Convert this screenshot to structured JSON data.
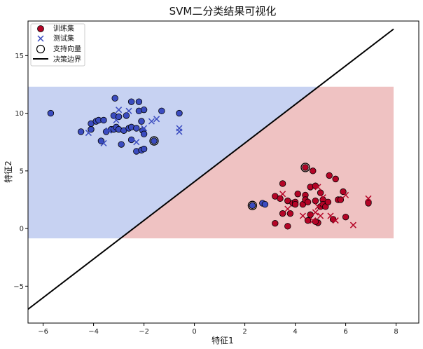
{
  "chart_data": {
    "type": "scatter",
    "title": "SVM二分类结果可视化",
    "xlabel": "特征1",
    "ylabel": "特征2",
    "xlim": [
      -6.6,
      8.9
    ],
    "ylim": [
      -8.2,
      18.0
    ],
    "xticks": [
      -6,
      -4,
      -2,
      0,
      2,
      4,
      6,
      8
    ],
    "yticks": [
      -5,
      0,
      5,
      10,
      15
    ],
    "grid": false,
    "legend_position": "top-left",
    "legend": [
      "训练集",
      "测试集",
      "支持向量",
      "决策边界"
    ],
    "colors": {
      "blue_class": "#3b4cc0",
      "red_class": "#b40426",
      "region_blue": "#c7d2f2",
      "region_red": "#efc2c2",
      "boundary": "#000000"
    },
    "region": {
      "x": [
        -6.6,
        7.9
      ],
      "y": [
        -0.85,
        12.3
      ]
    },
    "decision_boundary": {
      "x": [
        -6.6,
        7.9
      ],
      "y": [
        -7.0,
        17.3
      ]
    },
    "train_blue": [
      [
        -5.7,
        10.0
      ],
      [
        -4.5,
        8.4
      ],
      [
        -4.1,
        8.6
      ],
      [
        -4.1,
        9.1
      ],
      [
        -3.9,
        9.3
      ],
      [
        -3.8,
        9.4
      ],
      [
        -3.7,
        7.6
      ],
      [
        -3.6,
        9.4
      ],
      [
        -3.5,
        8.4
      ],
      [
        -3.3,
        8.6
      ],
      [
        -3.2,
        9.8
      ],
      [
        -3.2,
        8.6
      ],
      [
        -3.15,
        11.3
      ],
      [
        -3.1,
        8.8
      ],
      [
        -3.0,
        9.7
      ],
      [
        -3.0,
        8.6
      ],
      [
        -2.9,
        7.3
      ],
      [
        -2.8,
        8.5
      ],
      [
        -2.7,
        9.8
      ],
      [
        -2.6,
        8.7
      ],
      [
        -2.5,
        11.0
      ],
      [
        -2.5,
        8.8
      ],
      [
        -2.5,
        7.7
      ],
      [
        -2.3,
        8.7
      ],
      [
        -2.2,
        10.2
      ],
      [
        -2.3,
        6.7
      ],
      [
        -2.2,
        11.0
      ],
      [
        -2.1,
        9.3
      ],
      [
        -2.1,
        6.8
      ],
      [
        -2.0,
        6.9
      ],
      [
        -2.05,
        8.5
      ],
      [
        -2.0,
        8.2
      ],
      [
        -2.0,
        10.3
      ],
      [
        -1.6,
        7.6
      ],
      [
        -1.3,
        10.2
      ],
      [
        -0.6,
        10.0
      ],
      [
        2.3,
        2.0
      ],
      [
        2.3,
        2.0
      ],
      [
        2.7,
        2.2
      ],
      [
        2.8,
        2.1
      ]
    ],
    "train_red": [
      [
        3.2,
        2.8
      ],
      [
        3.2,
        0.45
      ],
      [
        3.4,
        2.6
      ],
      [
        3.5,
        1.3
      ],
      [
        3.5,
        3.9
      ],
      [
        3.7,
        2.4
      ],
      [
        3.7,
        0.2
      ],
      [
        3.8,
        1.3
      ],
      [
        3.9,
        2.2
      ],
      [
        4.0,
        2.3
      ],
      [
        4.1,
        3.0
      ],
      [
        4.3,
        2.1
      ],
      [
        4.4,
        2.9
      ],
      [
        4.4,
        2.5
      ],
      [
        4.4,
        5.3
      ],
      [
        4.5,
        2.3
      ],
      [
        4.6,
        3.6
      ],
      [
        4.7,
        5.0
      ],
      [
        4.8,
        3.7
      ],
      [
        4.8,
        2.4
      ],
      [
        4.9,
        0.5
      ],
      [
        5.0,
        1.9
      ],
      [
        5.0,
        3.1
      ],
      [
        5.1,
        2.5
      ],
      [
        5.1,
        2.1
      ],
      [
        5.2,
        1.9
      ],
      [
        5.3,
        2.3
      ],
      [
        5.35,
        4.6
      ],
      [
        5.5,
        0.8
      ],
      [
        5.6,
        4.3
      ],
      [
        5.7,
        2.5
      ],
      [
        5.8,
        2.5
      ],
      [
        5.9,
        3.2
      ],
      [
        6.0,
        1.0
      ],
      [
        6.9,
        2.3
      ],
      [
        6.9,
        2.2
      ],
      [
        4.8,
        0.6
      ],
      [
        4.0,
        2.1
      ],
      [
        4.6,
        1.2
      ],
      [
        4.5,
        0.7
      ]
    ],
    "test_blue": [
      [
        -4.2,
        8.3
      ],
      [
        -3.6,
        7.4
      ],
      [
        -3.0,
        10.3
      ],
      [
        -2.6,
        10.2
      ],
      [
        -2.3,
        7.5
      ],
      [
        -1.7,
        9.3
      ],
      [
        -1.5,
        9.5
      ],
      [
        -0.6,
        8.7
      ],
      [
        -0.6,
        8.4
      ],
      [
        -3.1,
        9.4
      ],
      [
        -3.4,
        8.5
      ],
      [
        -2.0,
        8.7
      ]
    ],
    "test_red": [
      [
        3.5,
        3.0
      ],
      [
        3.7,
        1.7
      ],
      [
        4.3,
        1.1
      ],
      [
        4.7,
        0.7
      ],
      [
        4.8,
        1.4
      ],
      [
        4.9,
        3.6
      ],
      [
        5.0,
        1.1
      ],
      [
        5.1,
        2.7
      ],
      [
        5.4,
        1.1
      ],
      [
        5.6,
        0.7
      ],
      [
        6.0,
        2.9
      ],
      [
        6.3,
        0.3
      ],
      [
        6.9,
        2.6
      ],
      [
        4.9,
        1.9
      ]
    ],
    "support_vectors": [
      [
        -1.6,
        7.6
      ],
      [
        2.3,
        2.0
      ],
      [
        4.4,
        5.3
      ]
    ]
  }
}
